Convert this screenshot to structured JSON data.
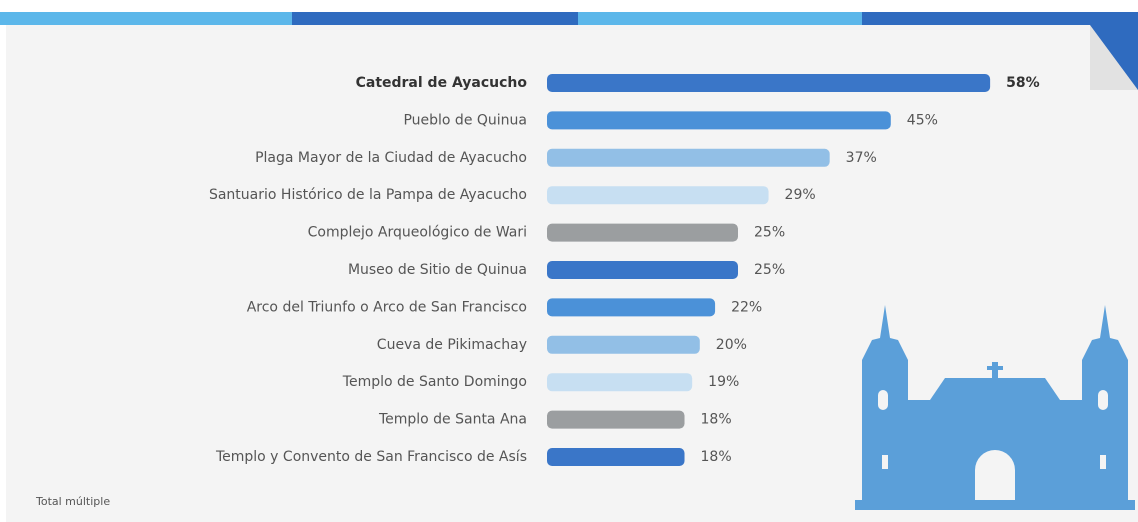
{
  "chart_data": {
    "type": "bar",
    "categories": [
      "Catedral de Ayacucho",
      "Pueblo de Quinua",
      "Plaga Mayor de la Ciudad de Ayacucho",
      "Santuario Histórico de la Pampa de Ayacucho",
      "Complejo Arqueológico de Wari",
      "Museo de Sitio de Quinua",
      "Arco del Triunfo o Arco de San Francisco",
      "Cueva de Pikimachay",
      "Templo de Santo Domingo",
      "Templo de Santa Ana",
      "Templo y Convento de San Francisco de Asís"
    ],
    "values": [
      58,
      45,
      37,
      29,
      25,
      25,
      22,
      20,
      19,
      18,
      18
    ],
    "value_labels": [
      "58%",
      "45%",
      "37%",
      "29%",
      "25%",
      "25%",
      "22%",
      "20%",
      "19%",
      "18%",
      "18%"
    ],
    "colors": [
      "#3a76c8",
      "#4b91d8",
      "#92bfe6",
      "#c7dff2",
      "#9b9ea0",
      "#3a76c8",
      "#4b91d8",
      "#92bfe6",
      "#c7dff2",
      "#9b9ea0",
      "#3a76c8"
    ],
    "footnote": "Total múltiple"
  }
}
